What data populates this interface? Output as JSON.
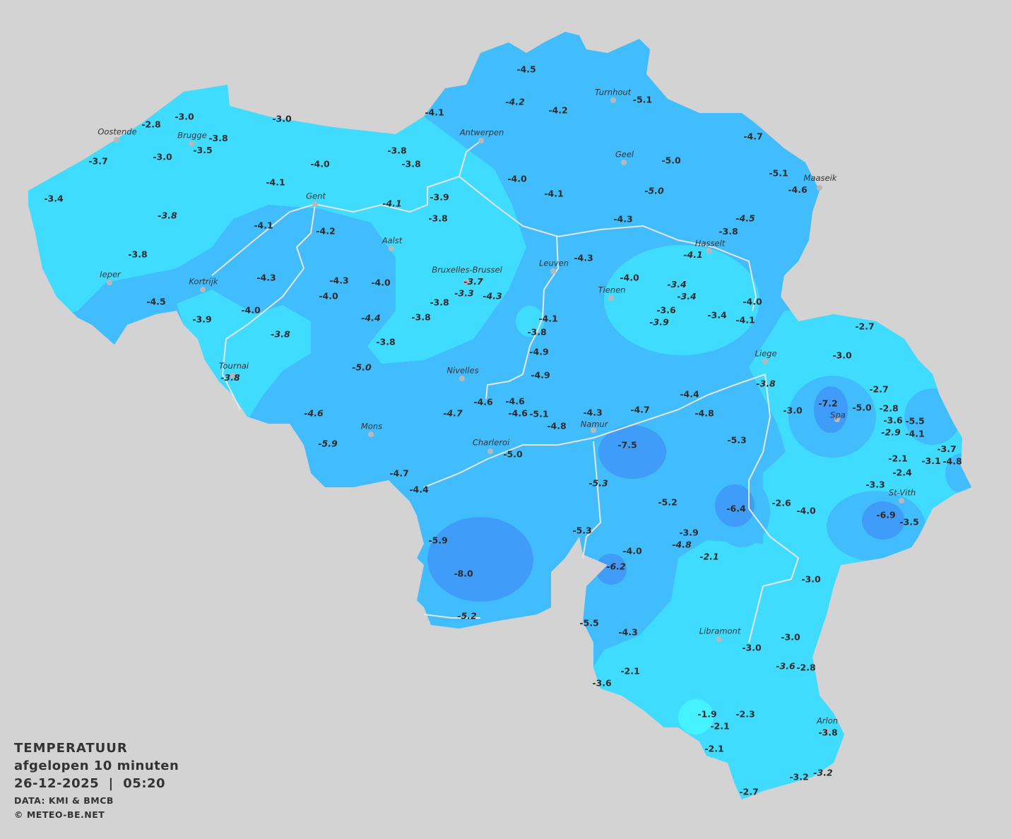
{
  "legend": {
    "title": "TEMPERATUUR",
    "subtitle": "afgelopen 10 minuten",
    "datetime": "26-12-2025  |  05:20",
    "source": "DATA: KMI & BMCB",
    "copyright": "© METEO-BE.NET"
  },
  "colors": {
    "background": "#d3d3d3",
    "band_light": "#40dcff",
    "band_medium": "#41bdfd",
    "band_dark": "#3f9cf8",
    "band_lightest": "#45f2ff",
    "rivers": "#e6e6e6",
    "text": "#2b2b2b"
  },
  "cities": [
    "Oostende",
    "Brugge",
    "Antwerpen",
    "Turnhout",
    "Geel",
    "Maaseik",
    "Gent",
    "Aalst",
    "Hasselt",
    "Ieper",
    "Kortrijk",
    "Bruxelles-Brussel",
    "Leuven",
    "Tienen",
    "Liege",
    "Spa",
    "Tournai",
    "Nivelles",
    "Mons",
    "Charleroi",
    "Namur",
    "St-Vith",
    "Libramont",
    "Arlon"
  ],
  "temperatures": [
    {
      "v": "-4.5"
    },
    {
      "v": "-4.2",
      "i": true
    },
    {
      "v": "-4.2"
    },
    {
      "v": "-5.1"
    },
    {
      "v": "-4.1"
    },
    {
      "v": "-3.0"
    },
    {
      "v": "-2.8"
    },
    {
      "v": "-3.0"
    },
    {
      "v": "-3.8"
    },
    {
      "v": "-3.5"
    },
    {
      "v": "-3.7"
    },
    {
      "v": "-3.0"
    },
    {
      "v": "-3.8"
    },
    {
      "v": "-3.8"
    },
    {
      "v": "-4.0"
    },
    {
      "v": "-4.7"
    },
    {
      "v": "-5.0"
    },
    {
      "v": "-4.0"
    },
    {
      "v": "-5.1"
    },
    {
      "v": "-4.6"
    },
    {
      "v": "-4.1"
    },
    {
      "v": "-5.0",
      "i": true
    },
    {
      "v": "-3.4"
    },
    {
      "v": "-4.1"
    },
    {
      "v": "-3.9"
    },
    {
      "v": "-4.1",
      "i": true
    },
    {
      "v": "-3.8",
      "i": true
    },
    {
      "v": "-3.8"
    },
    {
      "v": "-4.1"
    },
    {
      "v": "-4.2"
    },
    {
      "v": "-4.3"
    },
    {
      "v": "-4.5",
      "i": true
    },
    {
      "v": "-3.8"
    },
    {
      "v": "-4.1",
      "i": true
    },
    {
      "v": "-3.8"
    },
    {
      "v": "-4.3"
    },
    {
      "v": "-4.3"
    },
    {
      "v": "-4.3"
    },
    {
      "v": "-4.0"
    },
    {
      "v": "-3.7",
      "i": true
    },
    {
      "v": "-3.3",
      "i": true
    },
    {
      "v": "-4.3",
      "i": true
    },
    {
      "v": "-4.0"
    },
    {
      "v": "-3.4",
      "i": true
    },
    {
      "v": "-3.4",
      "i": true
    },
    {
      "v": "-4.0"
    },
    {
      "v": "-4.5"
    },
    {
      "v": "-4.0"
    },
    {
      "v": "-3.8"
    },
    {
      "v": "-4.4",
      "i": true
    },
    {
      "v": "-3.8"
    },
    {
      "v": "-4.1"
    },
    {
      "v": "-3.6"
    },
    {
      "v": "-3.9",
      "i": true
    },
    {
      "v": "-3.4"
    },
    {
      "v": "-4.0"
    },
    {
      "v": "-4.1"
    },
    {
      "v": "-3.9"
    },
    {
      "v": "-3.8",
      "i": true
    },
    {
      "v": "-3.8"
    },
    {
      "v": "-3.8"
    },
    {
      "v": "-4.9"
    },
    {
      "v": "-2.7"
    },
    {
      "v": "-3.0"
    },
    {
      "v": "-5.0",
      "i": true
    },
    {
      "v": "-4.9"
    },
    {
      "v": "-3.8",
      "i": true
    },
    {
      "v": "-3.8",
      "i": true
    },
    {
      "v": "-2.7"
    },
    {
      "v": "-4.4"
    },
    {
      "v": "-4.6"
    },
    {
      "v": "-4.6"
    },
    {
      "v": "-3.0"
    },
    {
      "v": "-7.2"
    },
    {
      "v": "-5.0"
    },
    {
      "v": "-2.8"
    },
    {
      "v": "-3.6"
    },
    {
      "v": "-5.5"
    },
    {
      "v": "-4.6",
      "i": true
    },
    {
      "v": "-4.7",
      "i": true
    },
    {
      "v": "-4.6"
    },
    {
      "v": "-5.1"
    },
    {
      "v": "-4.3"
    },
    {
      "v": "-4.7"
    },
    {
      "v": "-4.8"
    },
    {
      "v": "-4.8"
    },
    {
      "v": "-2.9",
      "i": true
    },
    {
      "v": "-4.1"
    },
    {
      "v": "-5.9",
      "i": true
    },
    {
      "v": "-7.5"
    },
    {
      "v": "-5.3"
    },
    {
      "v": "-3.7"
    },
    {
      "v": "-3.1"
    },
    {
      "v": "-4.8"
    },
    {
      "v": "-2.1"
    },
    {
      "v": "-2.4"
    },
    {
      "v": "-5.0"
    },
    {
      "v": "-4.7"
    },
    {
      "v": "-3.3"
    },
    {
      "v": "-5.3",
      "i": true
    },
    {
      "v": "-4.4"
    },
    {
      "v": "-5.2"
    },
    {
      "v": "-6.4"
    },
    {
      "v": "-2.6"
    },
    {
      "v": "-4.0"
    },
    {
      "v": "-6.9"
    },
    {
      "v": "-3.5"
    },
    {
      "v": "-5.3"
    },
    {
      "v": "-3.9"
    },
    {
      "v": "-4.8",
      "i": true
    },
    {
      "v": "-5.9"
    },
    {
      "v": "-4.0"
    },
    {
      "v": "-2.1",
      "i": true
    },
    {
      "v": "-6.2",
      "i": true
    },
    {
      "v": "-8.0"
    },
    {
      "v": "-3.0"
    },
    {
      "v": "-5.2",
      "i": true
    },
    {
      "v": "-5.5"
    },
    {
      "v": "-4.3"
    },
    {
      "v": "-3.0"
    },
    {
      "v": "-3.0"
    },
    {
      "v": "-3.6",
      "i": true
    },
    {
      "v": "-2.8"
    },
    {
      "v": "-2.1"
    },
    {
      "v": "-3.6"
    },
    {
      "v": "-2.3"
    },
    {
      "v": "-1.9"
    },
    {
      "v": "-2.1"
    },
    {
      "v": "-3.8"
    },
    {
      "v": "-2.1"
    },
    {
      "v": "-3.2"
    },
    {
      "v": "-3.2",
      "i": true
    },
    {
      "v": "-2.7"
    }
  ]
}
